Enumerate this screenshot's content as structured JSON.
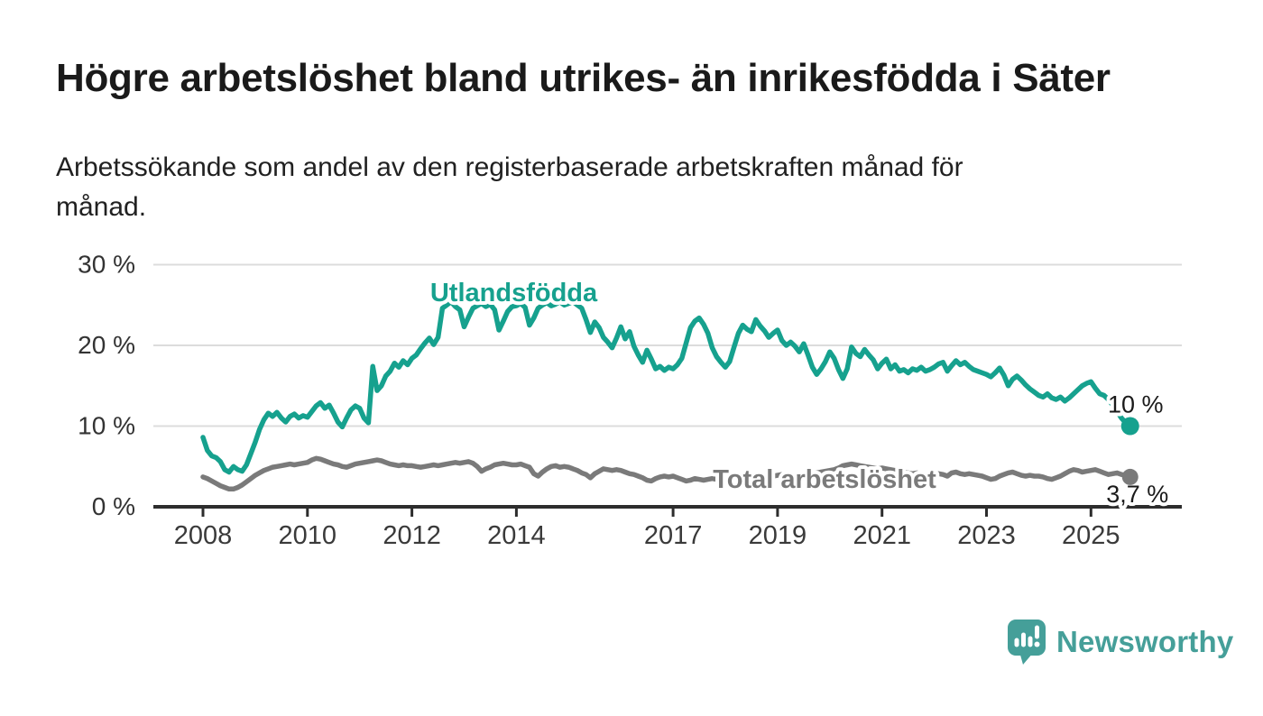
{
  "header": {
    "title": "Högre arbetslöshet bland utrikes- än inrikesfödda i Säter",
    "subtitle_line1": "Arbetssökande som andel av den registerbaserade arbetskraften månad för",
    "subtitle_line2": "månad."
  },
  "chart_data": {
    "type": "line",
    "title": "Högre arbetslöshet bland utrikes- än inrikesfödda i Säter",
    "subtitle": "Arbetssökande som andel av den registerbaserade arbetskraften månad för månad.",
    "x_start_year": 2008,
    "points_per_year": 12,
    "ylim": [
      0,
      30
    ],
    "grid": true,
    "legend_position": "inline-labels",
    "y_ticks": [
      {
        "value": 0,
        "label": "0 %"
      },
      {
        "value": 10,
        "label": "10 %"
      },
      {
        "value": 20,
        "label": "20 %"
      },
      {
        "value": 30,
        "label": "30 %"
      }
    ],
    "x_ticks": [
      {
        "value": 2008,
        "label": "2008"
      },
      {
        "value": 2010,
        "label": "2010"
      },
      {
        "value": 2012,
        "label": "2012"
      },
      {
        "value": 2014,
        "label": "2014"
      },
      {
        "value": 2017,
        "label": "2017"
      },
      {
        "value": 2019,
        "label": "2019"
      },
      {
        "value": 2021,
        "label": "2021"
      },
      {
        "value": 2023,
        "label": "2023"
      },
      {
        "value": 2025,
        "label": "2025"
      }
    ],
    "series": [
      {
        "id": "utlandsfodda",
        "name": "Utlandsfödda",
        "color": "#16a18e",
        "end_label": "10 %",
        "label_pos": {
          "year": 2013.95,
          "value": 26.6
        },
        "values": [
          8.6,
          7.0,
          6.3,
          6.1,
          5.6,
          4.6,
          4.3,
          5.0,
          4.6,
          4.4,
          5.2,
          6.6,
          8.0,
          9.6,
          10.8,
          11.6,
          11.2,
          11.7,
          11.0,
          10.5,
          11.2,
          11.5,
          11.0,
          11.3,
          11.1,
          11.8,
          12.5,
          12.9,
          12.2,
          12.6,
          11.6,
          10.5,
          9.9,
          11.0,
          12.0,
          12.5,
          12.2,
          11.0,
          10.4,
          17.4,
          14.4,
          15.0,
          16.2,
          16.8,
          17.8,
          17.3,
          18.1,
          17.6,
          18.4,
          18.8,
          19.6,
          20.3,
          20.9,
          20.1,
          21.0,
          24.6,
          25.0,
          25.4,
          24.8,
          24.4,
          22.3,
          23.5,
          24.6,
          24.9,
          25.2,
          24.8,
          25.1,
          24.4,
          21.9,
          23.0,
          24.2,
          24.8,
          24.9,
          25.2,
          24.7,
          22.5,
          23.4,
          24.6,
          25.0,
          25.3,
          24.9,
          25.1,
          25.4,
          25.0,
          25.2,
          25.4,
          25.0,
          24.6,
          23.2,
          21.6,
          22.9,
          22.2,
          21.0,
          20.4,
          19.7,
          20.9,
          22.3,
          20.8,
          21.7,
          19.9,
          18.8,
          17.9,
          19.4,
          18.3,
          17.1,
          17.4,
          16.9,
          17.3,
          17.1,
          17.6,
          18.4,
          20.3,
          22.2,
          23.0,
          23.4,
          22.6,
          21.5,
          19.7,
          18.6,
          17.9,
          17.3,
          18.0,
          19.8,
          21.5,
          22.5,
          22.0,
          21.7,
          23.2,
          22.4,
          21.8,
          21.0,
          21.5,
          21.9,
          20.6,
          20.0,
          20.4,
          19.9,
          19.2,
          20.2,
          18.8,
          17.3,
          16.4,
          17.1,
          18.0,
          19.2,
          18.4,
          17.0,
          15.9,
          17.1,
          19.8,
          19.0,
          18.6,
          19.5,
          18.8,
          18.2,
          17.1,
          17.8,
          18.3,
          17.1,
          17.6,
          16.8,
          17.0,
          16.6,
          17.1,
          16.9,
          17.3,
          16.8,
          17.0,
          17.3,
          17.7,
          17.9,
          16.8,
          17.5,
          18.1,
          17.6,
          17.9,
          17.4,
          17.0,
          16.8,
          16.6,
          16.4,
          16.1,
          16.6,
          17.2,
          16.3,
          15.0,
          15.8,
          16.2,
          15.7,
          15.1,
          14.6,
          14.2,
          13.8,
          13.6,
          14.0,
          13.5,
          13.3,
          13.6,
          13.1,
          13.5,
          14.0,
          14.5,
          15.0,
          15.3,
          15.5,
          14.7,
          14.0,
          13.8,
          13.3,
          12.6,
          11.8,
          11.0,
          10.4,
          10.0
        ]
      },
      {
        "id": "total",
        "name": "Total arbetslöshet",
        "color": "#7a7a7a",
        "end_label": "3,7 %",
        "label_pos": {
          "year": 2019.9,
          "value": 3.45
        },
        "values": [
          3.7,
          3.5,
          3.2,
          2.9,
          2.6,
          2.4,
          2.2,
          2.2,
          2.4,
          2.7,
          3.1,
          3.5,
          3.9,
          4.2,
          4.5,
          4.7,
          4.9,
          5.0,
          5.1,
          5.2,
          5.3,
          5.2,
          5.3,
          5.4,
          5.5,
          5.8,
          6.0,
          5.9,
          5.7,
          5.5,
          5.3,
          5.2,
          5.0,
          4.9,
          5.1,
          5.3,
          5.4,
          5.5,
          5.6,
          5.7,
          5.8,
          5.7,
          5.5,
          5.3,
          5.2,
          5.1,
          5.2,
          5.1,
          5.1,
          5.0,
          4.9,
          5.0,
          5.1,
          5.2,
          5.1,
          5.2,
          5.3,
          5.4,
          5.5,
          5.4,
          5.5,
          5.6,
          5.4,
          5.0,
          4.4,
          4.7,
          4.9,
          5.2,
          5.3,
          5.4,
          5.3,
          5.2,
          5.2,
          5.3,
          5.1,
          4.9,
          4.1,
          3.8,
          4.3,
          4.7,
          5.0,
          5.1,
          4.9,
          5.0,
          4.9,
          4.7,
          4.5,
          4.2,
          4.0,
          3.6,
          4.1,
          4.4,
          4.7,
          4.6,
          4.5,
          4.6,
          4.5,
          4.3,
          4.1,
          4.0,
          3.8,
          3.6,
          3.3,
          3.2,
          3.5,
          3.7,
          3.8,
          3.7,
          3.8,
          3.6,
          3.4,
          3.2,
          3.3,
          3.5,
          3.4,
          3.3,
          3.4,
          3.5,
          3.4,
          3.5,
          3.5,
          3.6,
          3.7,
          3.6,
          3.5,
          3.4,
          3.5,
          3.6,
          3.7,
          3.8,
          3.7,
          3.8,
          3.9,
          4.0,
          3.9,
          3.8,
          3.9,
          4.0,
          4.1,
          4.0,
          4.1,
          4.2,
          4.3,
          4.4,
          4.5,
          4.6,
          4.8,
          5.1,
          5.2,
          5.3,
          5.2,
          5.1,
          5.0,
          4.9,
          4.8,
          4.7,
          4.8,
          4.7,
          4.6,
          4.5,
          4.4,
          4.3,
          4.2,
          4.1,
          4.2,
          4.1,
          4.0,
          4.1,
          4.0,
          4.1,
          4.0,
          3.8,
          4.2,
          4.3,
          4.1,
          4.0,
          4.1,
          4.0,
          3.9,
          3.8,
          3.6,
          3.4,
          3.5,
          3.8,
          4.0,
          4.2,
          4.3,
          4.1,
          3.9,
          3.8,
          3.9,
          3.8,
          3.8,
          3.7,
          3.5,
          3.4,
          3.6,
          3.8,
          4.1,
          4.4,
          4.6,
          4.5,
          4.3,
          4.4,
          4.5,
          4.6,
          4.4,
          4.2,
          4.0,
          4.1,
          4.2,
          4.0,
          3.9,
          3.7
        ]
      }
    ]
  },
  "branding": {
    "logo_text": "Newsworthy",
    "logo_color": "#459f99"
  },
  "palette": {
    "teal": "#16a18e",
    "gray": "#7a7a7a",
    "gridline": "#dcdcdc",
    "axis": "#2d2d2d",
    "title_color": "#1a1a1a"
  }
}
